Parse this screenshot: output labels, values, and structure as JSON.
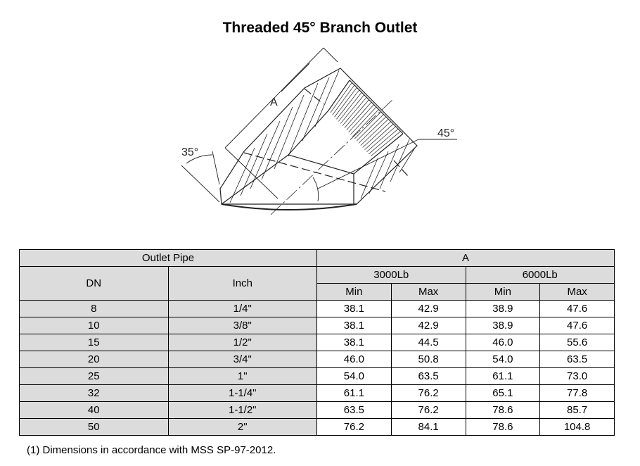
{
  "title": "Threaded 45° Branch Outlet",
  "drawing": {
    "dim_a": "A",
    "angle_left": "35°",
    "angle_right": "45°"
  },
  "table": {
    "group_outlet": "Outlet Pipe",
    "group_a": "A",
    "col_dn": "DN",
    "col_inch": "Inch",
    "class_3000": "3000Lb",
    "class_6000": "6000Lb",
    "min": "Min",
    "max": "Max",
    "rows": [
      [
        "8",
        "1/4\"",
        "38.1",
        "42.9",
        "38.9",
        "47.6"
      ],
      [
        "10",
        "3/8\"",
        "38.1",
        "42.9",
        "38.9",
        "47.6"
      ],
      [
        "15",
        "1/2\"",
        "38.1",
        "44.5",
        "46.0",
        "55.6"
      ],
      [
        "20",
        "3/4\"",
        "46.0",
        "50.8",
        "54.0",
        "63.5"
      ],
      [
        "25",
        "1\"",
        "54.0",
        "63.5",
        "61.1",
        "73.0"
      ],
      [
        "32",
        "1-1/4\"",
        "61.1",
        "76.2",
        "65.1",
        "77.8"
      ],
      [
        "40",
        "1-1/2\"",
        "63.5",
        "76.2",
        "78.6",
        "85.7"
      ],
      [
        "50",
        "2\"",
        "76.2",
        "84.1",
        "78.6",
        "104.8"
      ]
    ]
  },
  "note": "(1)  Dimensions in accordance with MSS SP-97-2012."
}
